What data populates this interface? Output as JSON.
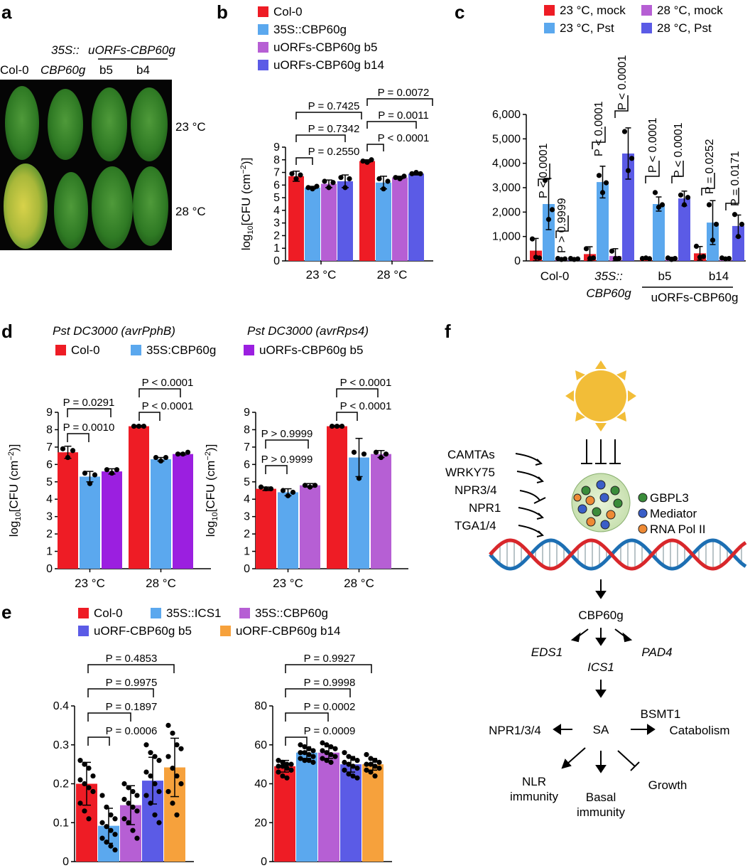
{
  "colors": {
    "red": "#ee1c25",
    "lightblue": "#5ba8ee",
    "lavender": "#b65fd4",
    "purple": "#9b1fe0",
    "blue": "#5b5be6",
    "orange": "#f6a13c",
    "dot": "#000000"
  },
  "panel_a": {
    "letter": "a",
    "construct": "35S::",
    "construct2": "uORFs-CBP60g",
    "col0": "Col-0",
    "cbp": "CBP60g",
    "b5": "b5",
    "b4": "b4",
    "t23": "23 °C",
    "t28": "28 °C"
  },
  "panel_f": {
    "letter": "f",
    "regulators": [
      "CAMTAs",
      "WRKY75",
      "NPR3/4",
      "NPR1",
      "TGA1/4"
    ],
    "legend": [
      "GBPL3",
      "Mediator",
      "RNA Pol II"
    ],
    "cbp60g": "CBP60g",
    "eds1": "EDS1",
    "pad4": "PAD4",
    "ics1": "ICS1",
    "sa": "SA",
    "npr": "NPR1/3/4",
    "bsmt1": "BSMT1",
    "catabolism": "Catabolism",
    "nlr1": "NLR",
    "nlr2": "immunity",
    "basal1": "Basal",
    "basal2": "immunity",
    "growth": "Growth"
  },
  "chart_data": [
    {
      "id": "b",
      "letter": "b",
      "type": "bar",
      "ylabel": "log10[CFU (cm−2)]",
      "ylim": [
        0,
        9
      ],
      "yticks": [
        0,
        1,
        2,
        3,
        4,
        5,
        6,
        7,
        8,
        9
      ],
      "categories": [
        "23 °C",
        "28 °C"
      ],
      "series": [
        {
          "name": "Col-0",
          "color": "#ee1c25",
          "values": [
            6.7,
            7.9
          ],
          "sd": [
            0.4,
            0.1
          ],
          "points": [
            [
              6.9,
              6.5,
              6.8
            ],
            [
              7.9,
              7.8,
              8.0
            ]
          ]
        },
        {
          "name": "35S::CBP60g",
          "color": "#5ba8ee",
          "values": [
            5.8,
            6.2
          ],
          "sd": [
            0.1,
            0.5
          ],
          "points": [
            [
              5.8,
              5.7,
              5.9
            ],
            [
              6.5,
              5.7,
              6.3
            ]
          ]
        },
        {
          "name": "uORFs-CBP60g b5",
          "color": "#b65fd4",
          "values": [
            6.1,
            6.6
          ],
          "sd": [
            0.3,
            0.1
          ],
          "points": [
            [
              6.3,
              5.8,
              6.2
            ],
            [
              6.6,
              6.5,
              6.7
            ]
          ]
        },
        {
          "name": "uORFs-CBP60g b14",
          "color": "#5b5be6",
          "values": [
            6.3,
            6.9
          ],
          "sd": [
            0.5,
            0.1
          ],
          "points": [
            [
              6.6,
              5.8,
              6.5
            ],
            [
              6.9,
              7.0,
              6.9
            ]
          ]
        }
      ],
      "comparisons": [
        {
          "label": "P = 0.7425"
        },
        {
          "label": "P = 0.7342"
        },
        {
          "label": "P = 0.2550"
        },
        {
          "label": "P = 0.0072"
        },
        {
          "label": "P = 0.0011"
        },
        {
          "label": "P < 0.0001"
        }
      ]
    },
    {
      "id": "c",
      "letter": "c",
      "type": "bar",
      "ylabel": "SA (ng g−1 FW)",
      "ylim": [
        0,
        6000
      ],
      "yticks": [
        "0",
        "1,000",
        "2,000",
        "3,000",
        "4,000",
        "5,000",
        "6,000"
      ],
      "categories": [
        "Col-0",
        "35S::CBP60g",
        "b5",
        "b14"
      ],
      "category_labels": [
        "Col-0",
        "35S::",
        "CBP60g",
        "b5",
        "b14",
        "uORFs-CBP60g"
      ],
      "series": [
        {
          "name": "23 °C, mock",
          "color": "#ee1c25",
          "values": [
            420,
            280,
            100,
            310
          ],
          "sd": [
            500,
            300,
            30,
            280
          ],
          "points": [
            [
              900,
              150,
              120
            ],
            [
              500,
              100,
              120
            ],
            [
              100,
              120,
              90
            ],
            [
              600,
              150,
              180
            ]
          ]
        },
        {
          "name": "23 °C, Pst",
          "color": "#5ba8ee",
          "values": [
            2330,
            3230,
            2330,
            1570
          ],
          "sd": [
            1050,
            650,
            290,
            900
          ],
          "points": [
            [
              3300,
              1700,
              2100
            ],
            [
              3500,
              2800,
              3200
            ],
            [
              2800,
              2200,
              2300
            ],
            [
              2300,
              850,
              1500
            ]
          ]
        },
        {
          "name": "28 °C, mock",
          "color": "#b65fd4",
          "values": [
            80,
            200,
            100,
            100
          ],
          "sd": [
            40,
            300,
            50,
            40
          ],
          "points": [
            [
              100,
              60,
              80
            ],
            [
              400,
              100,
              100
            ],
            [
              120,
              60,
              100
            ],
            [
              120,
              80,
              100
            ]
          ]
        },
        {
          "name": "28 °C, Pst",
          "color": "#5b5be6",
          "values": [
            80,
            4400,
            2560,
            1430
          ],
          "sd": [
            40,
            1050,
            300,
            450
          ],
          "points": [
            [
              100,
              60,
              80
            ],
            [
              5300,
              3700,
              4200
            ],
            [
              2700,
              2300,
              2600
            ],
            [
              1900,
              1000,
              1500
            ]
          ]
        }
      ],
      "comparisons": [
        "P < 0.0001",
        "P > 0.9999",
        "P < 0.0001",
        "P < 0.0001",
        "P < 0.0001",
        "P < 0.0001",
        "P = 0.0252",
        "P = 0.0171"
      ]
    },
    {
      "id": "d1",
      "letter": "d",
      "type": "bar",
      "title": "Pst DC3000 (avrPphB)",
      "ylabel": "log10[CFU (cm−2)]",
      "ylim": [
        0,
        9
      ],
      "yticks": [
        0,
        1,
        2,
        3,
        4,
        5,
        6,
        7,
        8,
        9
      ],
      "categories": [
        "23 °C",
        "28 °C"
      ],
      "series": [
        {
          "name": "Col-0",
          "color": "#ee1c25",
          "values": [
            6.7,
            8.2
          ],
          "sd": [
            0.35,
            0.05
          ],
          "points": [
            [
              6.9,
              6.4,
              6.8
            ],
            [
              8.2,
              8.2,
              8.2
            ]
          ]
        },
        {
          "name": "35S:CBP60g",
          "color": "#5ba8ee",
          "values": [
            5.3,
            6.3
          ],
          "sd": [
            0.3,
            0.1
          ],
          "points": [
            [
              5.5,
              4.9,
              5.4
            ],
            [
              6.4,
              6.2,
              6.4
            ]
          ]
        },
        {
          "name": "uORFs-CBP60g b5",
          "color": "#9b1fe0",
          "values": [
            5.6,
            6.6
          ],
          "sd": [
            0.15,
            0.05
          ],
          "points": [
            [
              5.7,
              5.5,
              5.7
            ],
            [
              6.6,
              6.6,
              6.7
            ]
          ]
        }
      ],
      "comparisons": [
        "P = 0.0291",
        "P = 0.0010",
        "P < 0.0001",
        "P < 0.0001"
      ]
    },
    {
      "id": "d2",
      "type": "bar",
      "title": "Pst DC3000 (avrRps4)",
      "ylabel": "log10[CFU (cm−2)]",
      "ylim": [
        0,
        9
      ],
      "yticks": [
        0,
        1,
        2,
        3,
        4,
        5,
        6,
        7,
        8,
        9
      ],
      "categories": [
        "23 °C",
        "28 °C"
      ],
      "series": [
        {
          "name": "Col-0",
          "color": "#ee1c25",
          "values": [
            4.6,
            8.2
          ],
          "sd": [
            0.1,
            0.05
          ],
          "points": [
            [
              4.7,
              4.6,
              4.6
            ],
            [
              8.2,
              8.2,
              8.2
            ]
          ]
        },
        {
          "name": "35S:CBP60g",
          "color": "#5ba8ee",
          "values": [
            4.4,
            6.4
          ],
          "sd": [
            0.2,
            1.1
          ],
          "points": [
            [
              4.5,
              4.2,
              4.4
            ],
            [
              6.7,
              5.2,
              6.6
            ]
          ]
        },
        {
          "name": "uORFs-CBP60g b5",
          "color": "#b65fd4",
          "values": [
            4.8,
            6.6
          ],
          "sd": [
            0.1,
            0.2
          ],
          "points": [
            [
              4.8,
              4.7,
              4.8
            ],
            [
              6.7,
              6.4,
              6.6
            ]
          ]
        }
      ],
      "comparisons": [
        "P > 0.9999",
        "P > 0.9999",
        "P < 0.0001",
        "P < 0.0001"
      ]
    },
    {
      "id": "e1",
      "letter": "e",
      "type": "bar",
      "ylabel": "Fresh weight (g)",
      "ylim": [
        0,
        0.4
      ],
      "yticks": [
        "0",
        "0.1",
        "0.2",
        "0.3",
        "0.4"
      ],
      "categories": [
        "Col-0",
        "35S::ICS1",
        "35S::CBP60g",
        "uORF-CBP60g b5",
        "uORF-CBP60g b14"
      ],
      "series": [
        {
          "name": "Col-0",
          "color": "#ee1c25",
          "value": 0.2,
          "sd": 0.055,
          "points": [
            0.26,
            0.25,
            0.24,
            0.22,
            0.21,
            0.2,
            0.19,
            0.18,
            0.15,
            0.13,
            0.11
          ]
        },
        {
          "name": "35S::ICS1",
          "color": "#5ba8ee",
          "value": 0.092,
          "sd": 0.045,
          "points": [
            0.17,
            0.14,
            0.12,
            0.11,
            0.1,
            0.09,
            0.08,
            0.07,
            0.06,
            0.05,
            0.04,
            0.03
          ]
        },
        {
          "name": "35S::CBP60g",
          "color": "#b65fd4",
          "value": 0.145,
          "sd": 0.05,
          "points": [
            0.2,
            0.19,
            0.18,
            0.17,
            0.16,
            0.15,
            0.14,
            0.13,
            0.11,
            0.1,
            0.08,
            0.06
          ]
        },
        {
          "name": "uORF-CBP60g b5",
          "color": "#5b5be6",
          "value": 0.208,
          "sd": 0.06,
          "points": [
            0.3,
            0.28,
            0.27,
            0.26,
            0.23,
            0.22,
            0.2,
            0.18,
            0.17,
            0.15,
            0.12,
            0.1
          ]
        },
        {
          "name": "uORF-CBP60g b14",
          "color": "#f6a13c",
          "value": 0.242,
          "sd": 0.075,
          "points": [
            0.35,
            0.33,
            0.3,
            0.29,
            0.27,
            0.24,
            0.22,
            0.2,
            0.18,
            0.15,
            0.12
          ]
        }
      ],
      "comparisons": [
        "P = 0.4853",
        "P = 0.9975",
        "P = 0.1897",
        "P = 0.0006"
      ]
    },
    {
      "id": "e2",
      "type": "bar",
      "ylabel": "Flowering time (days)",
      "ylim": [
        0,
        80
      ],
      "yticks": [
        "0",
        "20",
        "40",
        "60",
        "80"
      ],
      "categories": [
        "Col-0",
        "35S::ICS1",
        "35S::CBP60g",
        "uORF-CBP60g b5",
        "uORF-CBP60g b14"
      ],
      "series": [
        {
          "name": "Col-0",
          "color": "#ee1c25",
          "value": 49,
          "sd": 3,
          "points": [
            52,
            51,
            50,
            50,
            49,
            49,
            48,
            47,
            46,
            44,
            43
          ]
        },
        {
          "name": "35S::ICS1",
          "color": "#5ba8ee",
          "value": 56,
          "sd": 3,
          "points": [
            60,
            59,
            58,
            57,
            56,
            56,
            55,
            54,
            53,
            52,
            52,
            51
          ]
        },
        {
          "name": "35S::CBP60g",
          "color": "#b65fd4",
          "value": 56,
          "sd": 3,
          "points": [
            61,
            60,
            59,
            58,
            57,
            56,
            55,
            54,
            53,
            52,
            51
          ]
        },
        {
          "name": "uORF-CBP60g b5",
          "color": "#5b5be6",
          "value": 50,
          "sd": 4,
          "points": [
            56,
            54,
            53,
            52,
            51,
            50,
            49,
            48,
            47,
            45,
            44,
            43
          ]
        },
        {
          "name": "uORF-CBP60g b14",
          "color": "#f6a13c",
          "value": 50,
          "sd": 3,
          "points": [
            55,
            53,
            52,
            51,
            50,
            50,
            49,
            48,
            47,
            46,
            44
          ]
        }
      ],
      "comparisons": [
        "P = 0.9927",
        "P = 0.9998",
        "P = 0.0002",
        "P = 0.0009"
      ]
    }
  ],
  "legends": {
    "b": [
      "Col-0",
      "35S::CBP60g",
      "uORFs-CBP60g b5",
      "uORFs-CBP60g b14"
    ],
    "c": [
      "23 °C, mock",
      "23 °C, Pst",
      "28 °C, mock",
      "28 °C, Pst"
    ],
    "d": [
      "Col-0",
      "35S:CBP60g",
      "uORFs-CBP60g b5"
    ],
    "e": [
      "Col-0",
      "35S::ICS1",
      "35S::CBP60g",
      "uORF-CBP60g b5",
      "uORF-CBP60g b14"
    ]
  }
}
